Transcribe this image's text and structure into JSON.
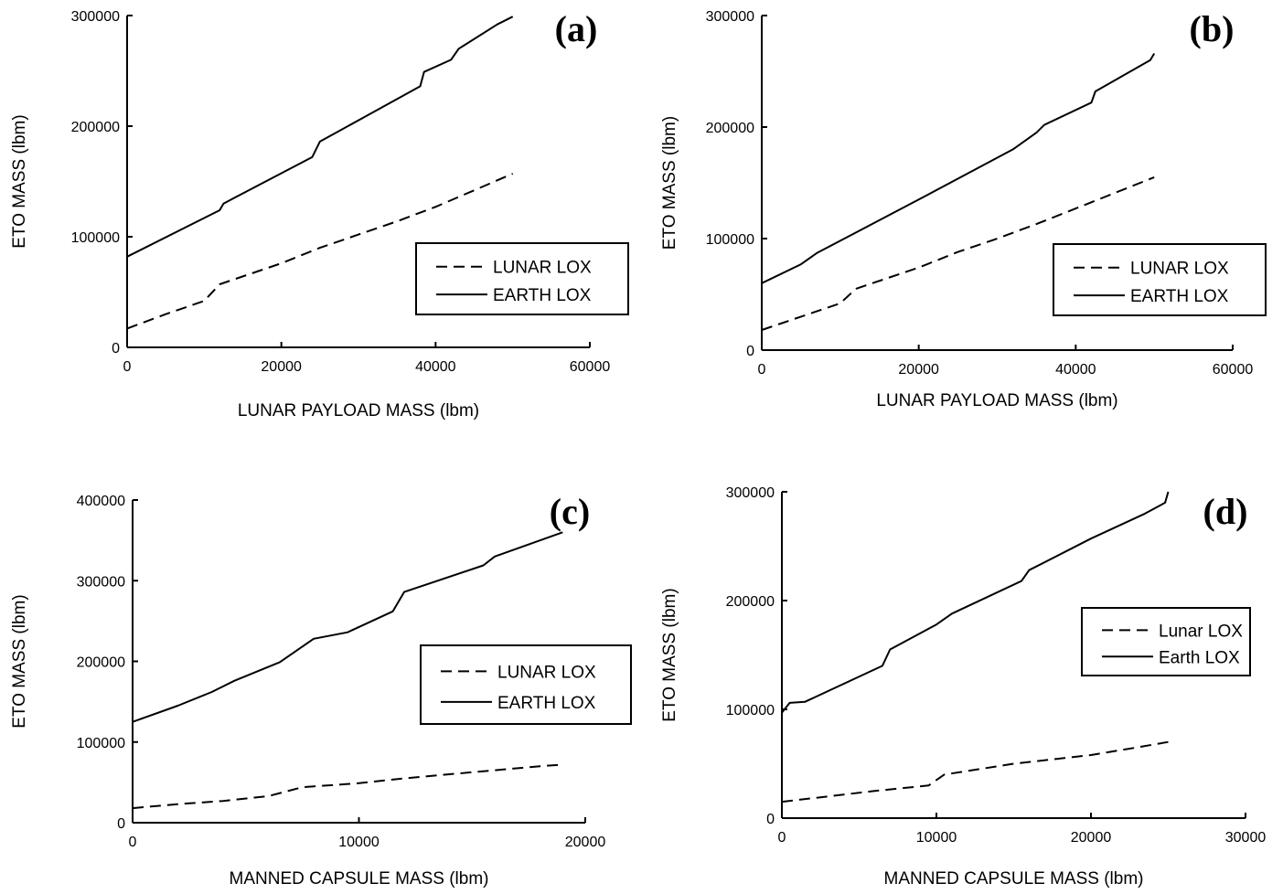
{
  "chart_data": [
    {
      "type": "line",
      "panel": "(a)",
      "xlabel": "LUNAR PAYLOAD MASS (lbm)",
      "ylabel": "ETO MASS (lbm)",
      "xlim": [
        0,
        60000
      ],
      "ylim": [
        0,
        300000
      ],
      "xticks": [
        "0",
        "20000",
        "40000",
        "60000"
      ],
      "yticks": [
        "0",
        "100000",
        "200000",
        "300000"
      ],
      "legend": "lower-right",
      "series": [
        {
          "name": "LUNAR LOX",
          "style": "dashed",
          "x": [
            0,
            5000,
            10000,
            12000,
            20000,
            25000,
            30000,
            35000,
            40000,
            45000,
            50000
          ],
          "y": [
            17000,
            30000,
            42000,
            57000,
            76000,
            90000,
            102000,
            114000,
            127000,
            142000,
            157000
          ]
        },
        {
          "name": "EARTH LOX",
          "style": "solid",
          "x": [
            0,
            12000,
            12500,
            24000,
            25000,
            38000,
            38500,
            42000,
            43000,
            48000,
            50000
          ],
          "y": [
            82000,
            124000,
            130000,
            172000,
            186000,
            236000,
            249000,
            260000,
            270000,
            292000,
            299000
          ]
        }
      ]
    },
    {
      "type": "line",
      "panel": "(b)",
      "xlabel": "LUNAR PAYLOAD MASS (lbm)",
      "ylabel": "ETO MASS (lbm)",
      "xlim": [
        0,
        60000
      ],
      "ylim": [
        0,
        300000
      ],
      "xticks": [
        "0",
        "20000",
        "40000",
        "60000"
      ],
      "yticks": [
        "0",
        "100000",
        "200000",
        "300000"
      ],
      "legend": "lower-right",
      "series": [
        {
          "name": "LUNAR LOX",
          "style": "dashed",
          "x": [
            0,
            5000,
            10000,
            12000,
            20000,
            25000,
            30000,
            35000,
            40000,
            45000,
            50000
          ],
          "y": [
            18000,
            30000,
            42000,
            55000,
            74000,
            88000,
            100000,
            113000,
            127000,
            141000,
            155000
          ]
        },
        {
          "name": "EARTH LOX",
          "style": "solid",
          "x": [
            0,
            5000,
            7000,
            20000,
            32000,
            35000,
            36000,
            42000,
            42500,
            49500,
            50000
          ],
          "y": [
            60000,
            77000,
            87000,
            135000,
            180000,
            195000,
            202000,
            222000,
            232000,
            260000,
            266000
          ]
        }
      ]
    },
    {
      "type": "line",
      "panel": "(c)",
      "xlabel": "MANNED CAPSULE MASS (lbm)",
      "ylabel": "ETO MASS (lbm)",
      "xlim": [
        0,
        20000
      ],
      "ylim": [
        0,
        400000
      ],
      "xticks": [
        "0",
        "10000",
        "20000"
      ],
      "yticks": [
        "0",
        "100000",
        "200000",
        "300000",
        "400000"
      ],
      "legend": "center-right",
      "series": [
        {
          "name": "LUNAR LOX",
          "style": "dashed",
          "x": [
            0,
            2000,
            4000,
            6000,
            7500,
            10000,
            12000,
            14000,
            16000,
            18000,
            19000
          ],
          "y": [
            18000,
            23000,
            27000,
            33000,
            44000,
            49000,
            55000,
            60000,
            65000,
            70000,
            72000
          ]
        },
        {
          "name": "EARTH LOX",
          "style": "solid",
          "x": [
            0,
            2000,
            3500,
            4500,
            6500,
            8000,
            9500,
            11500,
            12000,
            15500,
            16000,
            19000
          ],
          "y": [
            125000,
            145000,
            162000,
            176000,
            199000,
            228000,
            236000,
            262000,
            286000,
            319000,
            330000,
            360000
          ]
        }
      ]
    },
    {
      "type": "line",
      "panel": "(d)",
      "xlabel": "MANNED CAPSULE MASS (lbm)",
      "ylabel": "ETO MASS (lbm)",
      "xlim": [
        0,
        30000
      ],
      "ylim": [
        0,
        300000
      ],
      "xticks": [
        "0",
        "10000",
        "20000",
        "30000"
      ],
      "yticks": [
        "0",
        "100000",
        "200000",
        "300000"
      ],
      "legend": "center-right",
      "series": [
        {
          "name": "Lunar LOX",
          "style": "dashed",
          "x": [
            0,
            3000,
            6000,
            9500,
            10500,
            15000,
            20000,
            23000,
            25000
          ],
          "y": [
            15000,
            20000,
            25000,
            30000,
            40000,
            50000,
            58000,
            65000,
            70000
          ]
        },
        {
          "name": "Earth LOX",
          "style": "solid",
          "x": [
            0,
            500,
            1500,
            6500,
            7000,
            10000,
            11000,
            15500,
            16000,
            20000,
            23500,
            24800,
            25000
          ],
          "y": [
            97000,
            106000,
            107000,
            140000,
            155000,
            178000,
            188000,
            218000,
            228000,
            257000,
            280000,
            290000,
            300000
          ]
        }
      ]
    }
  ]
}
